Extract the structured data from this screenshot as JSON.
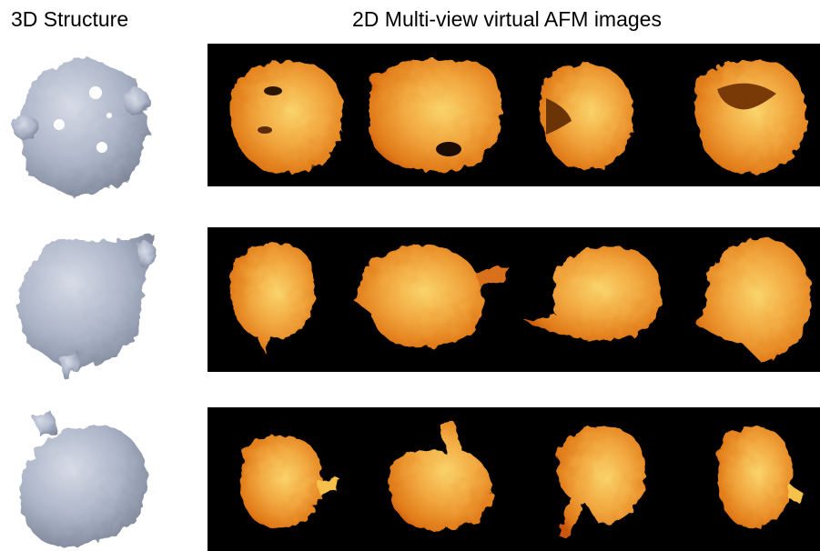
{
  "headings": {
    "left": "3D Structure",
    "right": "2D Multi-view virtual AFM images"
  },
  "rows": [
    {
      "structure": "protein-structure-1-icon",
      "afm_views": [
        "afm-view-1",
        "afm-view-2",
        "afm-view-3",
        "afm-view-4"
      ]
    },
    {
      "structure": "protein-structure-2-icon",
      "afm_views": [
        "afm-view-1",
        "afm-view-2",
        "afm-view-3",
        "afm-view-4"
      ]
    },
    {
      "structure": "protein-structure-3-icon",
      "afm_views": [
        "afm-view-1",
        "afm-view-2",
        "afm-view-3",
        "afm-view-4"
      ]
    }
  ],
  "colors": {
    "structure_gray": "#aab3c6",
    "afm_background": "#000000",
    "afm_dark": "#c9560a",
    "afm_mid": "#f0962e",
    "afm_light": "#f9d46a"
  }
}
